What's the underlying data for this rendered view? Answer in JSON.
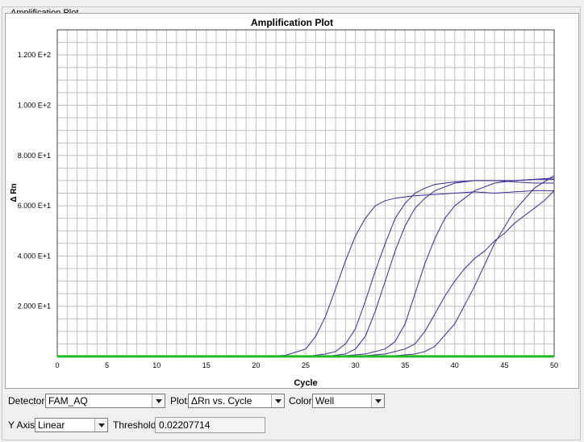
{
  "panel": {
    "title": "Amplification Plot"
  },
  "chart_data": {
    "type": "line",
    "title": "Amplification Plot",
    "xlabel": "Cycle",
    "ylabel": "Δ Rn",
    "xlim": [
      0,
      50
    ],
    "ylim": [
      0,
      130
    ],
    "grid": true,
    "x_ticks": [
      "0",
      "5",
      "10",
      "15",
      "20",
      "25",
      "30",
      "35",
      "40",
      "45",
      "50"
    ],
    "y_ticks": [
      {
        "value": 20,
        "label": "2.000 E+1"
      },
      {
        "value": 40,
        "label": "4.000 E+1"
      },
      {
        "value": 60,
        "label": "6.000 E+1"
      },
      {
        "value": 80,
        "label": "8.000 E+1"
      },
      {
        "value": 100,
        "label": "1.000 E+2"
      },
      {
        "value": 120,
        "label": "1.200 E+2"
      }
    ],
    "threshold": 0.02207714,
    "threshold_color": "#22bb22",
    "series_color": "#3a2a9a",
    "series": [
      {
        "x": [
          21,
          23,
          25,
          26,
          27,
          28,
          29,
          30,
          31,
          32,
          33,
          34,
          36,
          38,
          40,
          42,
          44,
          46,
          48,
          50
        ],
        "y": [
          0,
          0.5,
          3,
          8,
          16,
          27,
          38,
          48,
          55,
          60,
          62,
          63,
          64,
          64.5,
          65,
          65.5,
          65,
          65.5,
          66,
          66
        ]
      },
      {
        "x": [
          25,
          27,
          28,
          29,
          30,
          31,
          32,
          33,
          34,
          35,
          36,
          37,
          38,
          40,
          42,
          44,
          46,
          48,
          50
        ],
        "y": [
          0,
          1,
          2,
          5,
          11,
          22,
          34,
          45,
          55,
          61,
          65,
          67,
          68.5,
          69.5,
          70,
          70,
          69.5,
          69,
          69
        ]
      },
      {
        "x": [
          27,
          29,
          30,
          31,
          32,
          33,
          34,
          35,
          36,
          37,
          38,
          40,
          42,
          44,
          46,
          48,
          50
        ],
        "y": [
          0,
          1,
          3,
          8,
          18,
          30,
          42,
          52,
          59,
          63,
          66,
          69,
          70,
          70,
          70,
          70.5,
          71
        ]
      },
      {
        "x": [
          28,
          31,
          32,
          33,
          34,
          35,
          36,
          37,
          38,
          39,
          40,
          41,
          42,
          44,
          46,
          48,
          50
        ],
        "y": [
          0,
          1,
          2,
          3,
          6,
          13,
          25,
          37,
          47,
          55,
          60,
          63,
          66,
          69,
          70,
          70.5,
          70.5
        ]
      },
      {
        "x": [
          30,
          33,
          35,
          36,
          37,
          38,
          39,
          40,
          41,
          42,
          43,
          44,
          45,
          46,
          47,
          48,
          49,
          50
        ],
        "y": [
          0,
          1,
          3,
          5,
          10,
          17,
          24,
          30,
          35,
          39,
          42,
          46,
          49,
          53,
          56,
          59,
          62,
          66
        ]
      },
      {
        "x": [
          33,
          36,
          37,
          38,
          40,
          42,
          44,
          46,
          48,
          50
        ],
        "y": [
          0,
          1,
          2,
          4,
          13,
          28,
          45,
          58,
          67,
          72
        ]
      }
    ]
  },
  "controls": {
    "detector_label": "Detector:",
    "detector_value": "FAM_AQ",
    "plot_label": "Plot:",
    "plot_value": "ΔRn vs. Cycle",
    "color_label": "Color:",
    "color_value": "Well",
    "yaxis_label": "Y Axis:",
    "yaxis_value": "Linear",
    "threshold_label": "Threshold:",
    "threshold_value": "0.02207714"
  }
}
